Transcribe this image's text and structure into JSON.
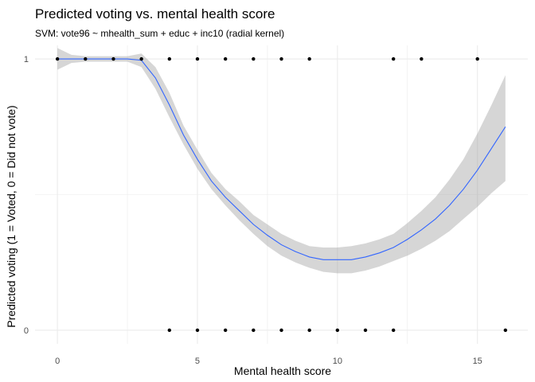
{
  "chart_data": {
    "type": "scatter",
    "title": "Predicted voting vs. mental health score",
    "subtitle": "SVM: vote96 ~ mhealth_sum + educ + inc10 (radial kernel)",
    "xlabel": "Mental health score",
    "ylabel": "Predicted voting (1 = Voted, 0 = Did not vote)",
    "xlim": [
      -0.8,
      16.8
    ],
    "ylim": [
      -0.05,
      1.05
    ],
    "x_ticks": [
      0,
      5,
      10,
      15
    ],
    "x_tick_labels": [
      "0",
      "5",
      "10",
      "15"
    ],
    "y_ticks": [
      0,
      1
    ],
    "y_tick_labels": [
      "0",
      "1"
    ],
    "grid": true,
    "colors": {
      "points": "#000000",
      "smooth_line": "#3366FF",
      "ribbon": "#999999",
      "grid": "#ebebeb"
    },
    "points": [
      {
        "x": 0,
        "y": 1
      },
      {
        "x": 1,
        "y": 1
      },
      {
        "x": 2,
        "y": 1
      },
      {
        "x": 3,
        "y": 1
      },
      {
        "x": 4,
        "y": 1
      },
      {
        "x": 5,
        "y": 1
      },
      {
        "x": 6,
        "y": 1
      },
      {
        "x": 7,
        "y": 1
      },
      {
        "x": 8,
        "y": 1
      },
      {
        "x": 9,
        "y": 1
      },
      {
        "x": 12,
        "y": 1
      },
      {
        "x": 13,
        "y": 1
      },
      {
        "x": 15,
        "y": 1
      },
      {
        "x": 4,
        "y": 0
      },
      {
        "x": 5,
        "y": 0
      },
      {
        "x": 6,
        "y": 0
      },
      {
        "x": 7,
        "y": 0
      },
      {
        "x": 8,
        "y": 0
      },
      {
        "x": 9,
        "y": 0
      },
      {
        "x": 10,
        "y": 0
      },
      {
        "x": 11,
        "y": 0
      },
      {
        "x": 12,
        "y": 0
      },
      {
        "x": 16,
        "y": 0
      }
    ],
    "smooth": {
      "x": [
        0,
        0.5,
        1,
        1.5,
        2,
        2.5,
        3,
        3.5,
        4,
        4.5,
        5,
        5.5,
        6,
        6.5,
        7,
        7.5,
        8,
        8.5,
        9,
        9.5,
        10,
        10.5,
        11,
        11.5,
        12,
        12.5,
        13,
        13.5,
        14,
        14.5,
        15,
        15.5,
        16
      ],
      "y": [
        1.0,
        1.0,
        1.0,
        1.0,
        1.0,
        1.0,
        0.995,
        0.93,
        0.83,
        0.72,
        0.63,
        0.55,
        0.49,
        0.44,
        0.39,
        0.35,
        0.315,
        0.29,
        0.27,
        0.26,
        0.26,
        0.26,
        0.27,
        0.285,
        0.305,
        0.335,
        0.37,
        0.41,
        0.46,
        0.52,
        0.59,
        0.67,
        0.75
      ],
      "lower": [
        0.96,
        0.985,
        0.99,
        0.99,
        0.99,
        0.99,
        0.97,
        0.89,
        0.785,
        0.685,
        0.595,
        0.52,
        0.46,
        0.405,
        0.355,
        0.31,
        0.275,
        0.25,
        0.23,
        0.215,
        0.21,
        0.21,
        0.22,
        0.235,
        0.255,
        0.275,
        0.3,
        0.33,
        0.365,
        0.41,
        0.455,
        0.505,
        0.55
      ],
      "upper": [
        1.04,
        1.015,
        1.01,
        1.01,
        1.01,
        1.01,
        1.02,
        0.97,
        0.875,
        0.755,
        0.665,
        0.58,
        0.52,
        0.475,
        0.425,
        0.39,
        0.355,
        0.33,
        0.31,
        0.305,
        0.305,
        0.31,
        0.32,
        0.335,
        0.355,
        0.395,
        0.44,
        0.49,
        0.555,
        0.63,
        0.725,
        0.83,
        0.94
      ]
    }
  }
}
